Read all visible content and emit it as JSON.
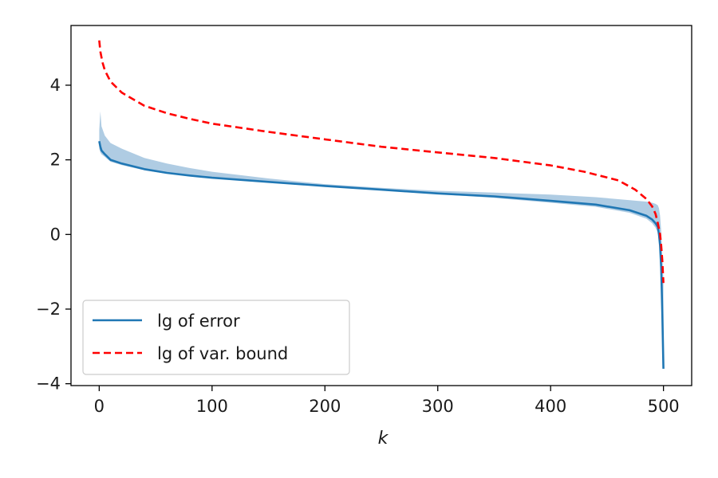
{
  "chart_data": {
    "type": "line",
    "xlabel": "k",
    "ylabel": "",
    "title": "",
    "xlim": [
      -25,
      525
    ],
    "ylim": [
      -4.05,
      5.6
    ],
    "xticks": [
      0,
      100,
      200,
      300,
      400,
      500
    ],
    "yticks": [
      -4,
      -2,
      0,
      2,
      4
    ],
    "xtick_labels": [
      "0",
      "100",
      "200",
      "300",
      "400",
      "500"
    ],
    "ytick_labels": [
      "−4",
      "−2",
      "0",
      "2",
      "4"
    ],
    "grid": false,
    "legend_position": "lower-left",
    "colors": {
      "error_line": "#1f77b4",
      "error_band": "#a6c6e0",
      "bound_line": "#ff0000",
      "axes": "#000000",
      "legend_border": "#cccccc"
    },
    "series": [
      {
        "name": "lg of error",
        "style": "solid",
        "x": [
          0,
          1,
          2,
          5,
          10,
          20,
          40,
          60,
          80,
          100,
          150,
          200,
          250,
          300,
          350,
          400,
          440,
          470,
          485,
          490,
          493,
          495,
          496,
          497,
          498,
          499,
          500
        ],
        "y": [
          2.5,
          2.35,
          2.25,
          2.15,
          2.0,
          1.9,
          1.75,
          1.65,
          1.58,
          1.52,
          1.41,
          1.3,
          1.2,
          1.1,
          1.02,
          0.9,
          0.8,
          0.65,
          0.5,
          0.4,
          0.3,
          0.2,
          0.0,
          -0.3,
          -0.9,
          -2.1,
          -3.6
        ]
      },
      {
        "name": "lg of var. bound",
        "style": "dashed",
        "x": [
          0,
          1,
          3,
          5,
          10,
          20,
          40,
          60,
          80,
          100,
          150,
          200,
          250,
          300,
          350,
          400,
          430,
          460,
          475,
          485,
          490,
          493,
          495,
          497,
          498,
          499,
          500
        ],
        "y": [
          5.2,
          4.9,
          4.6,
          4.4,
          4.1,
          3.8,
          3.45,
          3.25,
          3.1,
          2.97,
          2.75,
          2.55,
          2.35,
          2.2,
          2.05,
          1.85,
          1.68,
          1.45,
          1.2,
          0.95,
          0.75,
          0.55,
          0.3,
          0.0,
          -0.3,
          -0.7,
          -1.3
        ]
      }
    ],
    "error_band": {
      "x": [
        0,
        1,
        2,
        5,
        10,
        20,
        40,
        60,
        80,
        100,
        150,
        200,
        250,
        300,
        350,
        400,
        440,
        470,
        485,
        490,
        493,
        495,
        496,
        497,
        498,
        499,
        500
      ],
      "upper": [
        2.8,
        3.3,
        2.9,
        2.65,
        2.45,
        2.3,
        2.05,
        1.9,
        1.78,
        1.68,
        1.5,
        1.35,
        1.25,
        1.17,
        1.12,
        1.07,
        1.0,
        0.92,
        0.88,
        0.85,
        0.82,
        0.78,
        0.7,
        0.5,
        0.1,
        -0.6,
        -1.2
      ],
      "lower": [
        2.3,
        2.2,
        2.15,
        2.08,
        1.95,
        1.86,
        1.72,
        1.63,
        1.56,
        1.5,
        1.39,
        1.28,
        1.18,
        1.08,
        0.98,
        0.85,
        0.74,
        0.58,
        0.42,
        0.3,
        0.18,
        0.05,
        -0.15,
        -0.5,
        -1.2,
        -2.4,
        -3.6
      ]
    }
  },
  "legend": {
    "items": [
      "lg of error",
      "lg of var. bound"
    ]
  }
}
